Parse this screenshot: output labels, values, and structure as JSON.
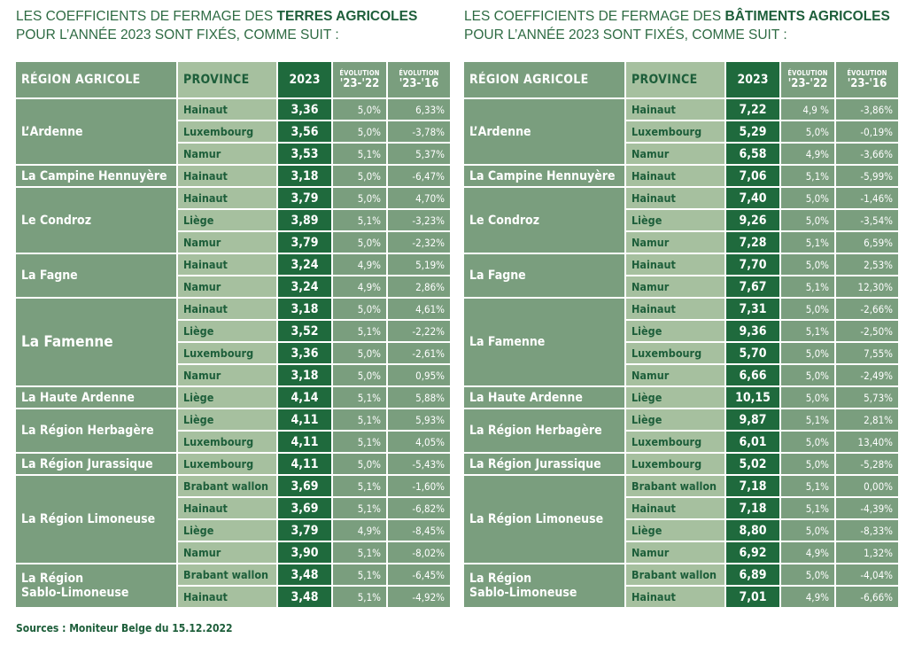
{
  "left": {
    "title_pre": "LES COEFFICIENTS DE FERMAGE DES ",
    "title_bold": "TERRES AGRICOLES",
    "title_line2": "POUR L’ANNÉE 2023 SONT FIXÉS, COMME SUIT :",
    "headers": {
      "region": "RÉGION AGRICOLE",
      "province": "PROVINCE",
      "year": "2023",
      "evo_small": "ÉVOLUTION",
      "evo1": "'23-'22",
      "evo2": "'23-'16"
    },
    "groups": [
      {
        "region": "L’Ardenne",
        "rows": [
          {
            "province": "Hainaut",
            "value": "3,36",
            "evo1": "5,0%",
            "evo2": "6,33%"
          },
          {
            "province": "Luxembourg",
            "value": "3,56",
            "evo1": "5,0%",
            "evo2": "-3,78%"
          },
          {
            "province": "Namur",
            "value": "3,53",
            "evo1": "5,1%",
            "evo2": "5,37%"
          }
        ]
      },
      {
        "region": "La Campine Hennuyère",
        "rows": [
          {
            "province": "Hainaut",
            "value": "3,18",
            "evo1": "5,0%",
            "evo2": "-6,47%"
          }
        ]
      },
      {
        "region": "Le Condroz",
        "rows": [
          {
            "province": "Hainaut",
            "value": "3,79",
            "evo1": "5,0%",
            "evo2": "4,70%"
          },
          {
            "province": "Liège",
            "value": "3,89",
            "evo1": "5,1%",
            "evo2": "-3,23%"
          },
          {
            "province": "Namur",
            "value": "3,79",
            "evo1": "5,0%",
            "evo2": "-2,32%"
          }
        ]
      },
      {
        "region": "La Fagne",
        "rows": [
          {
            "province": "Hainaut",
            "value": "3,24",
            "evo1": "4,9%",
            "evo2": "5,19%"
          },
          {
            "province": "Namur",
            "value": "3,24",
            "evo1": "4,9%",
            "evo2": "2,86%"
          }
        ]
      },
      {
        "region": "La Famenne",
        "big": true,
        "rows": [
          {
            "province": "Hainaut",
            "value": "3,18",
            "evo1": "5,0%",
            "evo2": "4,61%"
          },
          {
            "province": "Liège",
            "value": "3,52",
            "evo1": "5,1%",
            "evo2": "-2,22%"
          },
          {
            "province": "Luxembourg",
            "value": "3,36",
            "evo1": "5,0%",
            "evo2": "-2,61%"
          },
          {
            "province": "Namur",
            "value": "3,18",
            "evo1": "5,0%",
            "evo2": "0,95%"
          }
        ]
      },
      {
        "region": "La Haute Ardenne",
        "rows": [
          {
            "province": "Liège",
            "value": "4,14",
            "evo1": "5,1%",
            "evo2": "5,88%"
          }
        ]
      },
      {
        "region": "La Région Herbagère",
        "rows": [
          {
            "province": "Liège",
            "value": "4,11",
            "evo1": "5,1%",
            "evo2": "5,93%"
          },
          {
            "province": "Luxembourg",
            "value": "4,11",
            "evo1": "5,1%",
            "evo2": "4,05%"
          }
        ]
      },
      {
        "region": "La Région Jurassique",
        "rows": [
          {
            "province": "Luxembourg",
            "value": "4,11",
            "evo1": "5,0%",
            "evo2": "-5,43%"
          }
        ]
      },
      {
        "region": "La Région Limoneuse",
        "rows": [
          {
            "province": "Brabant wallon",
            "value": "3,69",
            "evo1": "5,1%",
            "evo2": "-1,60%"
          },
          {
            "province": "Hainaut",
            "value": "3,69",
            "evo1": "5,1%",
            "evo2": "-6,82%"
          },
          {
            "province": "Liège",
            "value": "3,79",
            "evo1": "4,9%",
            "evo2": "-8,45%"
          },
          {
            "province": "Namur",
            "value": "3,90",
            "evo1": "5,1%",
            "evo2": "-8,02%"
          }
        ]
      },
      {
        "region": "La Région",
        "region2": "Sablo-Limoneuse",
        "rows": [
          {
            "province": "Brabant wallon",
            "value": "3,48",
            "evo1": "5,1%",
            "evo2": "-6,45%"
          },
          {
            "province": "Hainaut",
            "value": "3,48",
            "evo1": "5,1%",
            "evo2": "-4,92%"
          }
        ]
      }
    ]
  },
  "right": {
    "title_pre": "LES COEFFICIENTS DE FERMAGE DES ",
    "title_bold": "BÂTIMENTS AGRICOLES",
    "title_line2": "POUR L’ANNÉE 2023 SONT FIXÉS, COMME SUIT :",
    "headers": {
      "region": "RÉGION AGRICOLE",
      "province": "PROVINCE",
      "year": "2023",
      "evo_small": "ÉVOLUTION",
      "evo1": "'23-'22",
      "evo2": "'23-'16"
    },
    "groups": [
      {
        "region": "L’Ardenne",
        "rows": [
          {
            "province": "Hainaut",
            "value": "7,22",
            "evo1": "4,9 %",
            "evo2": "-3,86%"
          },
          {
            "province": "Luxembourg",
            "value": "5,29",
            "evo1": "5,0%",
            "evo2": "-0,19%"
          },
          {
            "province": "Namur",
            "value": "6,58",
            "evo1": "4,9%",
            "evo2": "-3,66%"
          }
        ]
      },
      {
        "region": "La Campine Hennuyère",
        "rows": [
          {
            "province": "Hainaut",
            "value": "7,06",
            "evo1": "5,1%",
            "evo2": "-5,99%"
          }
        ]
      },
      {
        "region": "Le Condroz",
        "rows": [
          {
            "province": "Hainaut",
            "value": "7,40",
            "evo1": "5,0%",
            "evo2": "-1,46%"
          },
          {
            "province": "Liège",
            "value": "9,26",
            "evo1": "5,0%",
            "evo2": "-3,54%"
          },
          {
            "province": "Namur",
            "value": "7,28",
            "evo1": "5,1%",
            "evo2": "6,59%"
          }
        ]
      },
      {
        "region": "La Fagne",
        "rows": [
          {
            "province": "Hainaut",
            "value": "7,70",
            "evo1": "5,0%",
            "evo2": "2,53%"
          },
          {
            "province": "Namur",
            "value": "7,67",
            "evo1": "5,1%",
            "evo2": "12,30%"
          }
        ]
      },
      {
        "region": "La Famenne",
        "rows": [
          {
            "province": "Hainaut",
            "value": "7,31",
            "evo1": "5,0%",
            "evo2": "-2,66%"
          },
          {
            "province": "Liège",
            "value": "9,36",
            "evo1": "5,1%",
            "evo2": "-2,50%"
          },
          {
            "province": "Luxembourg",
            "value": "5,70",
            "evo1": "5,0%",
            "evo2": "7,55%"
          },
          {
            "province": "Namur",
            "value": "6,66",
            "evo1": "5,0%",
            "evo2": "-2,49%"
          }
        ]
      },
      {
        "region": "La Haute Ardenne",
        "rows": [
          {
            "province": "Liège",
            "value": "10,15",
            "evo1": "5,0%",
            "evo2": "5,73%"
          }
        ]
      },
      {
        "region": "La Région Herbagère",
        "rows": [
          {
            "province": "Liège",
            "value": "9,87",
            "evo1": "5,1%",
            "evo2": "2,81%"
          },
          {
            "province": "Luxembourg",
            "value": "6,01",
            "evo1": "5,0%",
            "evo2": "13,40%"
          }
        ]
      },
      {
        "region": "La Région Jurassique",
        "rows": [
          {
            "province": "Luxembourg",
            "value": "5,02",
            "evo1": "5,0%",
            "evo2": "-5,28%"
          }
        ]
      },
      {
        "region": "La Région Limoneuse",
        "rows": [
          {
            "province": "Brabant wallon",
            "value": "7,18",
            "evo1": "5,1%",
            "evo2": "0,00%"
          },
          {
            "province": "Hainaut",
            "value": "7,18",
            "evo1": "5,1%",
            "evo2": "-4,39%"
          },
          {
            "province": "Liège",
            "value": "8,80",
            "evo1": "5,0%",
            "evo2": "-8,33%"
          },
          {
            "province": "Namur",
            "value": "6,92",
            "evo1": "4,9%",
            "evo2": "1,32%"
          }
        ]
      },
      {
        "region": "La Région",
        "region2": "Sablo-Limoneuse",
        "rows": [
          {
            "province": "Brabant wallon",
            "value": "6,89",
            "evo1": "5,0%",
            "evo2": "-4,04%"
          },
          {
            "province": "Hainaut",
            "value": "7,01",
            "evo1": "4,9%",
            "evo2": "-6,66%"
          }
        ]
      }
    ]
  },
  "source": "Sources : Moniteur Belge du 15.12.2022"
}
